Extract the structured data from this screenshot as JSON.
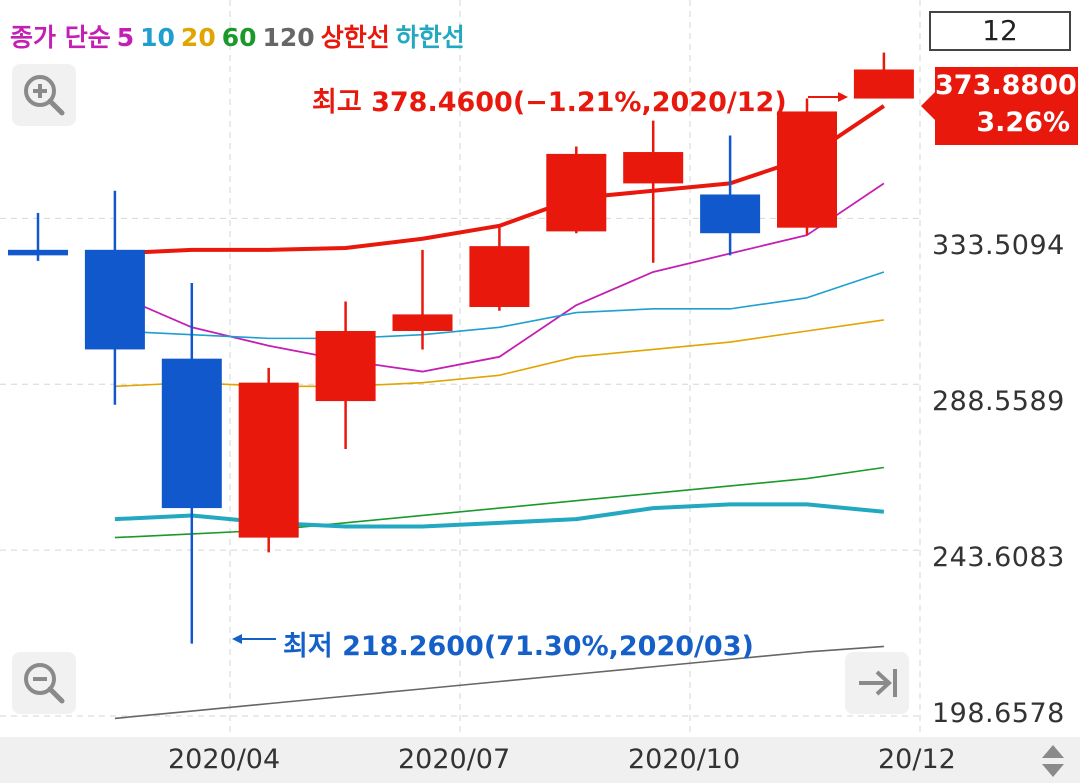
{
  "legend": [
    {
      "text": "종가 단순",
      "color": "#c41fb4"
    },
    {
      "text": "5",
      "color": "#c41fb4"
    },
    {
      "text": "10",
      "color": "#1f9fd0"
    },
    {
      "text": "20",
      "color": "#e0a500"
    },
    {
      "text": "60",
      "color": "#1a9a2a"
    },
    {
      "text": "120",
      "color": "#666666"
    },
    {
      "text": "상한선",
      "color": "#e8180c"
    },
    {
      "text": "하한선",
      "color": "#22a8c0"
    }
  ],
  "period": "12",
  "current": {
    "price": "373.8800",
    "change": "3.26%"
  },
  "annotations": {
    "high": "최고 378.4600(−1.21%,2020/12)",
    "low": "최저 218.2600(71.30%,2020/03)"
  },
  "chart_data": {
    "type": "candlestick",
    "y_ticks": [
      "333.5094",
      "288.5589",
      "243.6083",
      "198.6578"
    ],
    "x_ticks": [
      "2020/04",
      "2020/07",
      "2020/10",
      "20/12"
    ],
    "ylim": [
      193.5,
      390
    ],
    "candles": [
      {
        "o": 325.0,
        "h": 335.0,
        "l": 322.0,
        "c": 323.5
      },
      {
        "o": 325.0,
        "h": 341.0,
        "l": 283.0,
        "c": 298.0
      },
      {
        "o": 295.5,
        "h": 316.0,
        "l": 218.26,
        "c": 255.0
      },
      {
        "o": 247.0,
        "h": 293.0,
        "l": 243.0,
        "c": 289.0
      },
      {
        "o": 284.0,
        "h": 311.0,
        "l": 271.0,
        "c": 303.0
      },
      {
        "o": 303.0,
        "h": 325.0,
        "l": 298.0,
        "c": 307.5
      },
      {
        "o": 309.5,
        "h": 331.0,
        "l": 308.5,
        "c": 326.0
      },
      {
        "o": 330.0,
        "h": 353.0,
        "l": 329.5,
        "c": 351.0
      },
      {
        "o": 343.0,
        "h": 360.0,
        "l": 321.5,
        "c": 351.5
      },
      {
        "o": 340.0,
        "h": 356.0,
        "l": 323.5,
        "c": 329.5
      },
      {
        "o": 331.0,
        "h": 366.0,
        "l": 329.0,
        "c": 362.5
      },
      {
        "o": 366.0,
        "h": 378.46,
        "l": 366.0,
        "c": 373.88
      }
    ],
    "series": [
      {
        "color": "#c41fb4",
        "width": 1.8,
        "values": [
          null,
          313,
          304,
          299,
          295,
          292,
          296,
          310,
          319,
          324,
          329,
          343
        ]
      },
      {
        "color": "#1f9fd0",
        "width": 1.6,
        "values": [
          null,
          303,
          302,
          301,
          301,
          302,
          304,
          308,
          309,
          309,
          312,
          319
        ]
      },
      {
        "color": "#e0a500",
        "width": 1.6,
        "values": [
          null,
          288,
          289,
          288,
          288,
          289,
          291,
          296,
          298,
          300,
          303,
          306
        ]
      },
      {
        "color": "#1a9a2a",
        "width": 1.6,
        "values": [
          null,
          247,
          248,
          249,
          251,
          253,
          255,
          257,
          259,
          261,
          263,
          266
        ]
      },
      {
        "color": "#666666",
        "width": 1.6,
        "values": [
          null,
          198,
          200,
          202,
          204,
          206,
          208,
          210,
          212,
          214,
          216,
          217.5
        ]
      },
      {
        "color": "#e8180c",
        "width": 4,
        "values": [
          null,
          324,
          325,
          325,
          325.5,
          328,
          331.5,
          339,
          341,
          343,
          350,
          364
        ]
      },
      {
        "color": "#22a8c0",
        "width": 4,
        "values": [
          null,
          252,
          253,
          251,
          250,
          250,
          251,
          252,
          255,
          256,
          256,
          254
        ]
      }
    ]
  }
}
